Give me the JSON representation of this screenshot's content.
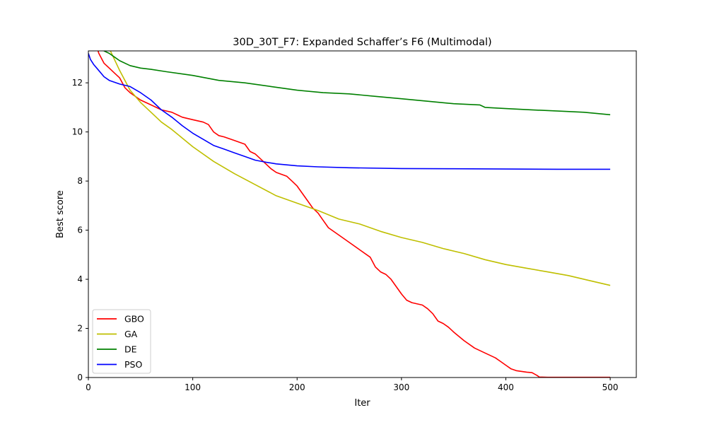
{
  "chart_data": {
    "type": "line",
    "title": "30D_30T_F7: Expanded Schaffer’s F6 (Multimodal)",
    "xlabel": "Iter",
    "ylabel": "Best score",
    "xlim": [
      0,
      525
    ],
    "ylim": [
      0,
      13.3
    ],
    "xticks": [
      0,
      100,
      200,
      300,
      400,
      500
    ],
    "yticks": [
      0,
      2,
      4,
      6,
      8,
      10,
      12
    ],
    "grid": false,
    "legend_position": "lower-left",
    "series": [
      {
        "name": "GBO",
        "color": "#ff0000",
        "x": [
          0,
          10,
          15,
          20,
          25,
          30,
          35,
          40,
          50,
          60,
          70,
          80,
          90,
          100,
          110,
          115,
          120,
          125,
          130,
          140,
          150,
          155,
          160,
          165,
          170,
          175,
          180,
          190,
          195,
          200,
          205,
          210,
          215,
          220,
          225,
          230,
          240,
          250,
          260,
          270,
          275,
          280,
          285,
          290,
          295,
          300,
          305,
          310,
          320,
          325,
          330,
          335,
          340,
          345,
          350,
          360,
          370,
          380,
          390,
          395,
          400,
          405,
          410,
          420,
          425,
          430,
          432,
          440,
          460,
          480,
          500
        ],
        "y": [
          14.5,
          13.2,
          12.8,
          12.6,
          12.4,
          12.2,
          11.8,
          11.6,
          11.3,
          11.1,
          10.9,
          10.8,
          10.6,
          10.5,
          10.4,
          10.3,
          10.0,
          9.85,
          9.8,
          9.65,
          9.5,
          9.2,
          9.1,
          8.9,
          8.7,
          8.5,
          8.35,
          8.2,
          8.0,
          7.8,
          7.5,
          7.2,
          6.9,
          6.7,
          6.4,
          6.1,
          5.8,
          5.5,
          5.2,
          4.9,
          4.5,
          4.3,
          4.2,
          4.0,
          3.7,
          3.4,
          3.15,
          3.05,
          2.95,
          2.8,
          2.6,
          2.3,
          2.2,
          2.05,
          1.85,
          1.5,
          1.2,
          1.0,
          0.8,
          0.65,
          0.5,
          0.35,
          0.28,
          0.22,
          0.2,
          0.08,
          0.02,
          0.01,
          0.01,
          0.01,
          0.01
        ]
      },
      {
        "name": "GA",
        "color": "#bfbf00",
        "x": [
          0,
          20,
          30,
          40,
          50,
          60,
          70,
          80,
          100,
          120,
          140,
          160,
          180,
          200,
          220,
          240,
          260,
          280,
          300,
          320,
          340,
          360,
          380,
          400,
          420,
          440,
          460,
          480,
          500
        ],
        "y": [
          14.5,
          13.4,
          12.5,
          11.7,
          11.2,
          10.8,
          10.4,
          10.1,
          9.4,
          8.8,
          8.3,
          7.85,
          7.4,
          7.1,
          6.8,
          6.45,
          6.25,
          5.95,
          5.7,
          5.5,
          5.25,
          5.05,
          4.8,
          4.6,
          4.45,
          4.3,
          4.15,
          3.95,
          3.75
        ]
      },
      {
        "name": "DE",
        "color": "#008000",
        "x": [
          0,
          15,
          20,
          25,
          30,
          40,
          50,
          60,
          75,
          100,
          125,
          150,
          175,
          200,
          225,
          250,
          275,
          300,
          325,
          350,
          375,
          380,
          400,
          425,
          450,
          475,
          500
        ],
        "y": [
          14.5,
          13.3,
          13.2,
          13.05,
          12.9,
          12.7,
          12.6,
          12.55,
          12.45,
          12.3,
          12.1,
          12.0,
          11.85,
          11.7,
          11.6,
          11.55,
          11.45,
          11.35,
          11.25,
          11.15,
          11.1,
          11.0,
          10.95,
          10.9,
          10.85,
          10.8,
          10.7
        ]
      },
      {
        "name": "PSO",
        "color": "#0000ff",
        "x": [
          0,
          2,
          5,
          10,
          15,
          20,
          30,
          40,
          50,
          60,
          70,
          80,
          90,
          100,
          110,
          120,
          130,
          140,
          150,
          160,
          170,
          180,
          200,
          220,
          250,
          300,
          350,
          400,
          450,
          500
        ],
        "y": [
          13.2,
          12.95,
          12.75,
          12.5,
          12.25,
          12.1,
          11.95,
          11.85,
          11.6,
          11.3,
          10.9,
          10.6,
          10.25,
          9.95,
          9.7,
          9.45,
          9.3,
          9.15,
          9.0,
          8.85,
          8.77,
          8.7,
          8.62,
          8.58,
          8.54,
          8.51,
          8.5,
          8.49,
          8.48,
          8.48
        ]
      }
    ]
  }
}
